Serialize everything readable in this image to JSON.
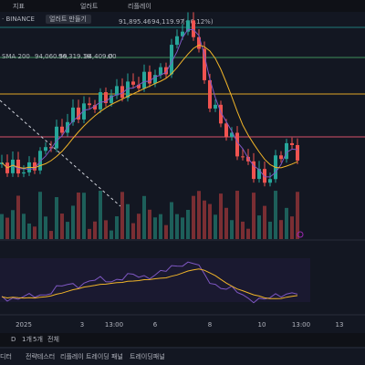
{
  "toolbar": {
    "items": [
      "지표",
      "얼러트",
      "리플레이"
    ]
  },
  "legend": {
    "symbol": "· BINANCE",
    "alert_button": "얼러트 만들기",
    "price_low": "91,895.46",
    "price_high": "94,119.97",
    "change": "(+0.12%)",
    "sma_label": "SMA 200",
    "sma_values": [
      "94,060.59",
      "96,319.18",
      "94,409.00"
    ],
    "icon": "Ø"
  },
  "x_axis": {
    "labels": [
      "2025",
      "3",
      "13:00",
      "6",
      "8",
      "10",
      "13:00",
      "13"
    ]
  },
  "range_bar": {
    "items": [
      "D",
      "1개",
      "5개",
      "전체"
    ]
  },
  "bottom_tabs": {
    "items": [
      "디터",
      "전략테스터",
      "리플레이 트레이딩 패널",
      "트레이딩패널"
    ]
  }
}
